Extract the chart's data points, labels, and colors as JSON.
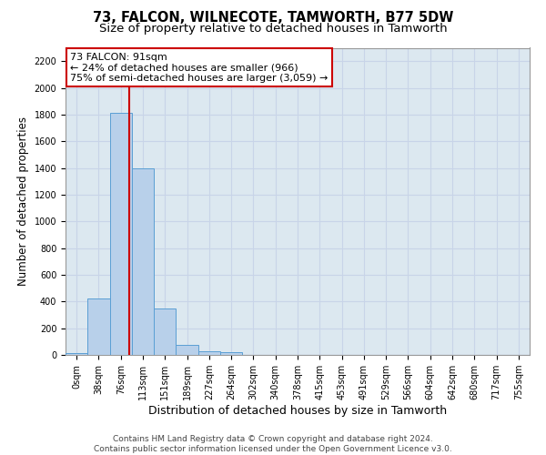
{
  "title": "73, FALCON, WILNECOTE, TAMWORTH, B77 5DW",
  "subtitle": "Size of property relative to detached houses in Tamworth",
  "xlabel": "Distribution of detached houses by size in Tamworth",
  "ylabel": "Number of detached properties",
  "bar_labels": [
    "0sqm",
    "38sqm",
    "76sqm",
    "113sqm",
    "151sqm",
    "189sqm",
    "227sqm",
    "264sqm",
    "302sqm",
    "340sqm",
    "378sqm",
    "415sqm",
    "453sqm",
    "491sqm",
    "529sqm",
    "566sqm",
    "604sqm",
    "642sqm",
    "680sqm",
    "717sqm",
    "755sqm"
  ],
  "bar_values": [
    15,
    425,
    1810,
    1400,
    350,
    75,
    25,
    20,
    0,
    0,
    0,
    0,
    0,
    0,
    0,
    0,
    0,
    0,
    0,
    0,
    0
  ],
  "bar_color": "#b8d0ea",
  "bar_edge_color": "#5a9fd4",
  "annotation_text": "73 FALCON: 91sqm\n← 24% of detached houses are smaller (966)\n75% of semi-detached houses are larger (3,059) →",
  "annotation_box_facecolor": "#ffffff",
  "annotation_box_edgecolor": "#cc0000",
  "red_line_color": "#cc0000",
  "ylim_max": 2300,
  "yticks": [
    0,
    200,
    400,
    600,
    800,
    1000,
    1200,
    1400,
    1600,
    1800,
    2000,
    2200
  ],
  "grid_color": "#c8d4e8",
  "background_color": "#dce8f0",
  "footer_line1": "Contains HM Land Registry data © Crown copyright and database right 2024.",
  "footer_line2": "Contains public sector information licensed under the Open Government Licence v3.0.",
  "title_fontsize": 10.5,
  "subtitle_fontsize": 9.5,
  "tick_fontsize": 7,
  "ylabel_fontsize": 8.5,
  "xlabel_fontsize": 9,
  "footer_fontsize": 6.5
}
